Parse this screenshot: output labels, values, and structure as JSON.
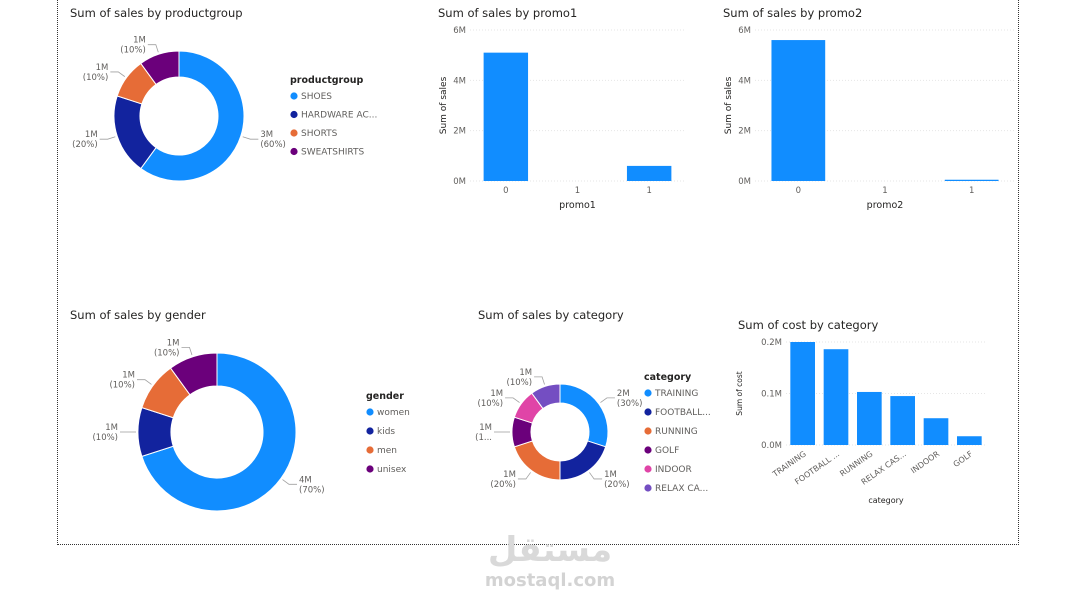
{
  "charts": [
    {
      "id": "productgroup",
      "type": "pie",
      "title": "Sum of sales by productgroup",
      "legend_title": "productgroup",
      "legend_placement": "right",
      "categories": [
        "SHOES",
        "HARDWARE AC...",
        "SHORTS",
        "SWEATSHIRTS"
      ],
      "values": [
        3,
        1,
        0.5,
        0.5
      ],
      "data_labels": [
        "3M (60%)",
        "1M (20%)",
        "1M (10%)",
        "1M (10%)"
      ],
      "colors": [
        "#118DFF",
        "#12239E",
        "#E66C37",
        "#6B007B"
      ]
    },
    {
      "id": "promo1",
      "type": "bar",
      "title": "Sum of sales by promo1",
      "xlabel": "promo1",
      "ylabel": "Sum of sales",
      "categories": [
        "0",
        "1",
        "1"
      ],
      "values": [
        5.1,
        0,
        0.6
      ],
      "y_ticks": [
        "0M",
        "2M",
        "4M",
        "6M"
      ],
      "ylim": [
        0,
        6
      ],
      "grid": true,
      "color": "#118DFF"
    },
    {
      "id": "promo2",
      "type": "bar",
      "title": "Sum of sales by promo2",
      "xlabel": "promo2",
      "ylabel": "Sum of sales",
      "categories": [
        "0",
        "1",
        "1"
      ],
      "values": [
        5.6,
        0,
        0.05
      ],
      "y_ticks": [
        "0M",
        "2M",
        "4M",
        "6M"
      ],
      "ylim": [
        0,
        6
      ],
      "grid": true,
      "color": "#118DFF"
    },
    {
      "id": "gender",
      "type": "pie",
      "title": "Sum of sales by gender",
      "legend_title": "gender",
      "legend_placement": "right",
      "categories": [
        "women",
        "kids",
        "men",
        "unisex"
      ],
      "values": [
        3.5,
        0.5,
        0.5,
        0.5
      ],
      "data_labels": [
        "4M (70%)",
        "1M (10%)",
        "1M (10%)",
        "1M (10%)"
      ],
      "colors": [
        "#118DFF",
        "#12239E",
        "#E66C37",
        "#6B007B"
      ]
    },
    {
      "id": "category",
      "type": "pie",
      "title": "Sum of sales by category",
      "legend_title": "category",
      "legend_placement": "right",
      "categories": [
        "TRAINING",
        "FOOTBALL...",
        "RUNNING",
        "GOLF",
        "INDOOR",
        "RELAX CA..."
      ],
      "values": [
        1.5,
        1,
        1,
        0.5,
        0.5,
        0.5
      ],
      "data_labels": [
        "2M (30%)",
        "1M (20%)",
        "1M (20%)",
        "1M (1...",
        "1M (10%)",
        "1M (10%)"
      ],
      "colors": [
        "#118DFF",
        "#12239E",
        "#E66C37",
        "#6B007B",
        "#E044A7",
        "#744EC2"
      ]
    },
    {
      "id": "cost",
      "type": "bar",
      "title": "Sum of cost by category",
      "xlabel": "category",
      "ylabel": "Sum of cost",
      "categories": [
        "TRAINING",
        "FOOTBALL ...",
        "RUNNING",
        "RELAX CAS...",
        "INDOOR",
        "GOLF"
      ],
      "values": [
        0.2,
        0.186,
        0.103,
        0.095,
        0.052,
        0.017
      ],
      "y_ticks": [
        "0.0M",
        "0.1M",
        "0.2M"
      ],
      "ylim": [
        0,
        0.2
      ],
      "grid": true,
      "color": "#118DFF"
    }
  ],
  "watermark": {
    "arabic": "مستقل",
    "latin": "mostaql.com"
  }
}
